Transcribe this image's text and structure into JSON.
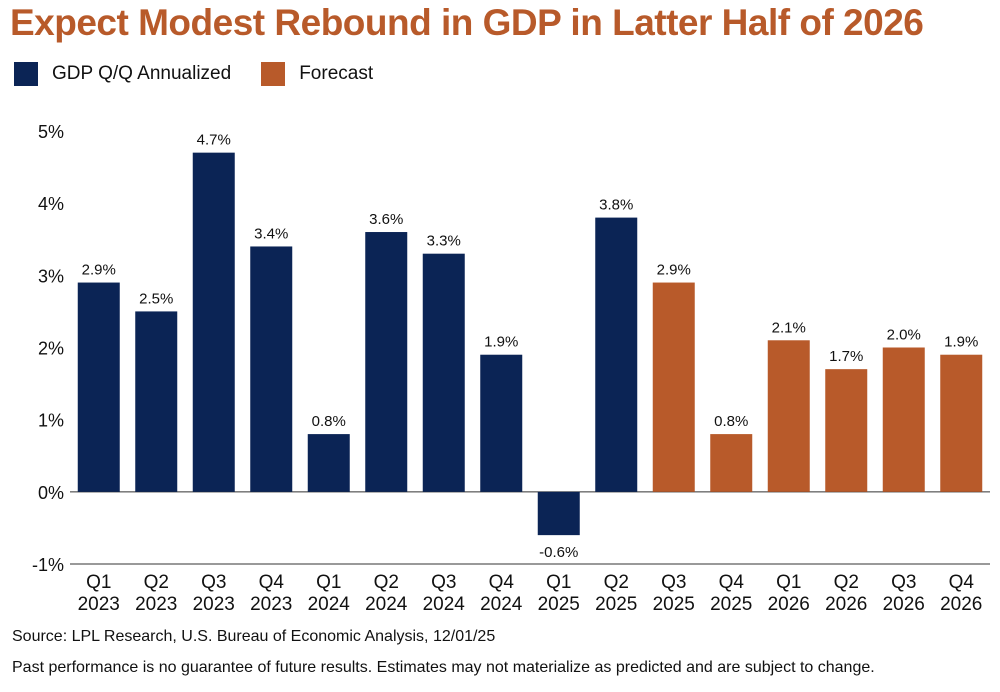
{
  "title": "Expect Modest Rebound in GDP in Latter Half of 2026",
  "legend": [
    {
      "label": "GDP Q/Q Annualized",
      "color": "#0b2455"
    },
    {
      "label": "Forecast",
      "color": "#b85a2a"
    }
  ],
  "chart_data": {
    "type": "bar",
    "categories": [
      "Q1 2023",
      "Q2 2023",
      "Q3 2023",
      "Q4 2023",
      "Q1 2024",
      "Q2 2024",
      "Q3 2024",
      "Q4 2024",
      "Q1 2025",
      "Q2 2025",
      "Q3 2025",
      "Q4 2025",
      "Q1 2026",
      "Q2 2026",
      "Q3 2026",
      "Q4 2026"
    ],
    "category_lines": [
      [
        "Q1",
        "2023"
      ],
      [
        "Q2",
        "2023"
      ],
      [
        "Q3",
        "2023"
      ],
      [
        "Q4",
        "2023"
      ],
      [
        "Q1",
        "2024"
      ],
      [
        "Q2",
        "2024"
      ],
      [
        "Q3",
        "2024"
      ],
      [
        "Q4",
        "2024"
      ],
      [
        "Q1",
        "2025"
      ],
      [
        "Q2",
        "2025"
      ],
      [
        "Q3",
        "2025"
      ],
      [
        "Q4",
        "2025"
      ],
      [
        "Q1",
        "2026"
      ],
      [
        "Q2",
        "2026"
      ],
      [
        "Q3",
        "2026"
      ],
      [
        "Q4",
        "2026"
      ]
    ],
    "values": [
      2.9,
      2.5,
      4.7,
      3.4,
      0.8,
      3.6,
      3.3,
      1.9,
      -0.6,
      3.8,
      2.9,
      0.8,
      2.1,
      1.7,
      2.0,
      1.9
    ],
    "value_labels": [
      "2.9%",
      "2.5%",
      "4.7%",
      "3.4%",
      "0.8%",
      "3.6%",
      "3.3%",
      "1.9%",
      "-0.6%",
      "3.8%",
      "2.9%",
      "0.8%",
      "2.1%",
      "1.7%",
      "2.0%",
      "1.9%"
    ],
    "series_index": [
      0,
      0,
      0,
      0,
      0,
      0,
      0,
      0,
      0,
      0,
      1,
      1,
      1,
      1,
      1,
      1
    ],
    "ylim": [
      -1,
      5
    ],
    "yticks": [
      -1,
      0,
      1,
      2,
      3,
      4,
      5
    ],
    "ytick_labels": [
      "-1%",
      "0%",
      "1%",
      "2%",
      "3%",
      "4%",
      "5%"
    ],
    "grid": false,
    "legend_position": "top-left"
  },
  "source": "Source: LPL Research, U.S. Bureau of Economic Analysis, 12/01/25",
  "disclaimer": "Past performance is no guarantee of future results. Estimates may not materialize as predicted and are subject to change."
}
